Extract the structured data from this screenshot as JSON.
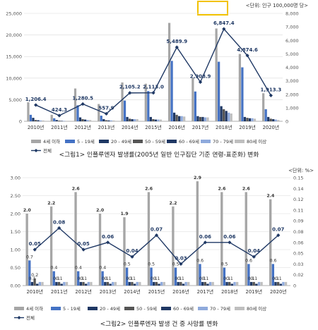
{
  "chart_data": [
    {
      "type": "bar",
      "unit_label": "<단위: 인구 100,000명 당>",
      "caption": "<그림1> 인플루엔자 발생률(2005년 일반 인구집단 기준 연령-표준화) 변화",
      "categories": [
        "2010년",
        "2011년",
        "2012년",
        "2013년",
        "2014년",
        "2015년",
        "2016년",
        "2017년",
        "2018년",
        "2019년",
        "2020년"
      ],
      "ylim": [
        0,
        25000
      ],
      "y_ticks": [
        "0",
        "5,000",
        "10,000",
        "15,000",
        "20,000",
        "25,000"
      ],
      "y2lim": [
        0,
        8000
      ],
      "y2_ticks": [
        "0",
        "1,000",
        "2,000",
        "3,000",
        "4,000",
        "5,000",
        "6,000",
        "7,000",
        "8,000"
      ],
      "grid": true,
      "legend_position": "bottom",
      "series": [
        {
          "name": "4세 이하",
          "color": "#a6a6a6",
          "values": [
            4400,
            1500,
            7600,
            4000,
            9000,
            8700,
            22800,
            10000,
            21500,
            15600,
            6500
          ]
        },
        {
          "name": "5 - 19세",
          "color": "#4472c4",
          "values": [
            1500,
            700,
            3700,
            1300,
            4800,
            7000,
            14000,
            6900,
            13800,
            12500,
            2800
          ]
        },
        {
          "name": "20 - 49세",
          "color": "#1f3864",
          "values": [
            800,
            300,
            900,
            500,
            1000,
            1000,
            2000,
            1200,
            3500,
            1000,
            1000
          ]
        },
        {
          "name": "50 - 59세",
          "color": "#555555",
          "values": [
            300,
            150,
            500,
            250,
            600,
            500,
            1500,
            1000,
            2800,
            800,
            600
          ]
        },
        {
          "name": "60 - 69세",
          "color": "#203864",
          "values": [
            250,
            100,
            400,
            200,
            500,
            400,
            1200,
            1000,
            2400,
            700,
            500
          ]
        },
        {
          "name": "70 - 79세",
          "color": "#8faadc",
          "values": [
            200,
            100,
            300,
            200,
            500,
            400,
            1200,
            900,
            2000,
            700,
            400
          ]
        },
        {
          "name": "80세 이상",
          "color": "#bfbfbf",
          "values": [
            200,
            100,
            300,
            200,
            500,
            400,
            1100,
            900,
            1800,
            600,
            300
          ]
        }
      ],
      "line": {
        "name": "전체",
        "color": "#1f3864",
        "values": [
          1206.4,
          424.3,
          1280.5,
          557.9,
          2105.2,
          2113.0,
          5489.9,
          2908.9,
          6847.4,
          4874.6,
          1913.3
        ],
        "labels": [
          "1,206.4",
          "424.3",
          "1,280.5",
          "557.9",
          "2,105.2",
          "2,113.0",
          "5,489.9",
          "2,908.9",
          "6,847.4",
          "4,874.6",
          "1,913.3"
        ]
      }
    },
    {
      "type": "bar",
      "unit_label": "<단위: %>",
      "caption": "<그림2> 인플루엔자 발생 건 중 사망률 변화",
      "categories": [
        "2010년",
        "2011년",
        "2012년",
        "2013년",
        "2014년",
        "2015년",
        "2016년",
        "2017년",
        "2018년",
        "2019년",
        "2020년"
      ],
      "ylim": [
        0,
        3.0
      ],
      "y_ticks": [
        "0.00",
        "0.50",
        "1.00",
        "1.50",
        "2.00",
        "2.50",
        "3.00"
      ],
      "y2lim": [
        0,
        0.15
      ],
      "y2_ticks": [
        "0",
        "0.02",
        "0.03",
        "0.05",
        "0.06",
        "0.08",
        "0.09",
        "0.11",
        "0.12",
        "0.14",
        "0.15"
      ],
      "grid": true,
      "legend_position": "bottom",
      "series": [
        {
          "name": "4세 이하",
          "color": "#a6a6a6",
          "values": [
            2.0,
            2.2,
            2.6,
            2.0,
            1.9,
            2.6,
            2.2,
            2.9,
            2.6,
            2.6,
            2.4
          ],
          "labels": [
            "2.0",
            "2.2",
            "2.6",
            "2.0",
            "1.9",
            "2.6",
            "2.2",
            "2.9",
            "2.6",
            "2.6",
            "2.4"
          ]
        },
        {
          "name": "5 - 19세",
          "color": "#4472c4",
          "values": [
            0.7,
            0.4,
            0.4,
            0.4,
            0.5,
            0.5,
            0.5,
            0.6,
            0.5,
            0.6,
            0.6
          ],
          "labels": [
            "0.7",
            "0.4",
            "0.4",
            "0.4",
            "0.5",
            "0.5",
            "0.5",
            "0.6",
            "0.5",
            "0.6",
            "0.6"
          ]
        },
        {
          "name": "20 - 49세",
          "color": "#1f3864",
          "values": [
            0.1,
            0.1,
            0.1,
            0.1,
            0.1,
            0.1,
            0.1,
            0.1,
            0.1,
            0.1,
            0.1
          ],
          "labels": [
            "0.1",
            "0.1",
            "0.1",
            "0.1",
            "0.1",
            "0.1",
            "0.1",
            "0.1",
            "0.1",
            "0.1",
            "0.1"
          ]
        },
        {
          "name": "50 - 59세",
          "color": "#555555",
          "values": [
            0.2,
            0.1,
            0.1,
            0.1,
            0.1,
            0.1,
            0.1,
            0.1,
            0.1,
            0.1,
            0.1
          ],
          "labels": [
            "0.2",
            "0.1",
            "0.1",
            "0.1",
            "0.1",
            "0.1",
            "0.1",
            "0.1",
            "0.1",
            "0.1",
            "0.1"
          ]
        },
        {
          "name": "60 - 69세",
          "color": "#203864",
          "values": [
            0.05,
            0.05,
            0.05,
            0.05,
            0.05,
            0.05,
            0.05,
            0.05,
            0.05,
            0.05,
            0.05
          ]
        },
        {
          "name": "70 - 79세",
          "color": "#8faadc",
          "values": [
            0.1,
            0.1,
            0.1,
            0.1,
            0.1,
            0.1,
            0.1,
            0.1,
            0.1,
            0.1,
            0.1
          ]
        },
        {
          "name": "80세 이상",
          "color": "#bfbfbf",
          "values": [
            0.1,
            0.1,
            0.1,
            0.1,
            0.1,
            0.1,
            0.1,
            0.1,
            0.1,
            0.1,
            0.1
          ]
        }
      ],
      "line": {
        "name": "전체",
        "color": "#1f3864",
        "values": [
          0.05,
          0.08,
          0.05,
          0.06,
          0.04,
          0.07,
          0.03,
          0.06,
          0.06,
          0.04,
          0.07
        ],
        "labels": [
          "0.05",
          "0.08",
          "0.05",
          "0.06",
          "0.04",
          "0.07",
          "0.03",
          "0.06",
          "0.06",
          "0.04",
          "0.07"
        ]
      }
    }
  ]
}
